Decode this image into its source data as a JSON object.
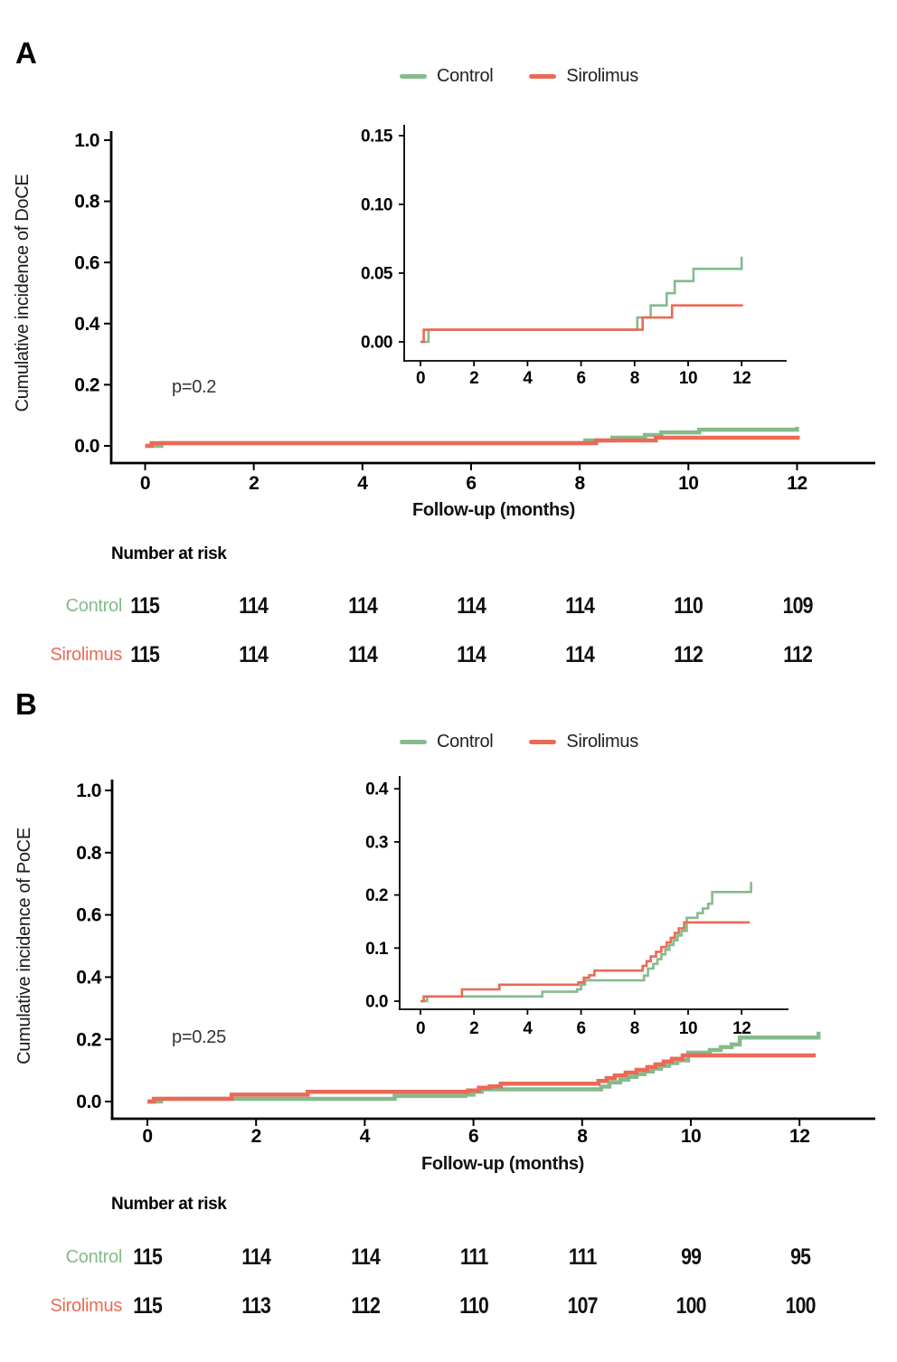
{
  "figure": {
    "panel_a_label": "A",
    "panel_b_label": "B",
    "risk_title": "Number at risk"
  },
  "colors": {
    "control": "#85BB8C",
    "sirolimus": "#EA6A56",
    "axis": "#000000",
    "tick_text": "#000000"
  },
  "legend": {
    "items": [
      {
        "label": "Control",
        "color": "#85BB8C"
      },
      {
        "label": "Sirolimus",
        "color": "#EA6A56"
      }
    ]
  },
  "chart_data": [
    {
      "panel": "A",
      "type": "line",
      "subtype": "step-cumulative-incidence",
      "xlabel": "Follow-up (months)",
      "ylabel": "Cumulative incidence of DoCE",
      "p_value": "p=0.2",
      "main_axis": {
        "xticks": [
          0,
          2,
          4,
          6,
          8,
          10,
          12
        ],
        "ytick_labels": [
          "0.0",
          "0.2",
          "0.4",
          "0.6",
          "0.8",
          "1.0"
        ],
        "xlim": [
          0,
          13.4
        ],
        "ylim": [
          0,
          1.08
        ],
        "grid": false
      },
      "inset_axis": {
        "xticks": [
          0,
          2,
          4,
          6,
          8,
          10,
          12
        ],
        "ytick_labels": [
          "0.00",
          "0.05",
          "0.10",
          "0.15"
        ],
        "xlim": [
          0,
          13.7
        ],
        "ylim": [
          0,
          0.17
        ],
        "grid": false
      },
      "series": [
        {
          "name": "Control",
          "color": "control",
          "points": [
            [
              0,
              0
            ],
            [
              0.3,
              0.0088
            ],
            [
              8.1,
              0.0177
            ],
            [
              8.6,
              0.0265
            ],
            [
              9.2,
              0.0354
            ],
            [
              9.5,
              0.0442
            ],
            [
              10.2,
              0.0531
            ],
            [
              12.0,
              0.062
            ]
          ]
        },
        {
          "name": "Sirolimus",
          "color": "sirolimus",
          "points": [
            [
              0,
              0
            ],
            [
              0.12,
              0.0088
            ],
            [
              8.3,
              0.0177
            ],
            [
              9.4,
              0.0265
            ],
            [
              12.05,
              0.0265
            ]
          ]
        }
      ],
      "risk_table": {
        "title": "Number at risk",
        "time_points": [
          0,
          2,
          4,
          6,
          8,
          10,
          12
        ],
        "rows": [
          {
            "label": "Control",
            "values": [
              "115",
              "114",
              "114",
              "114",
              "114",
              "110",
              "109"
            ]
          },
          {
            "label": "Sirolimus",
            "values": [
              "115",
              "114",
              "114",
              "114",
              "114",
              "112",
              "112"
            ]
          }
        ]
      }
    },
    {
      "panel": "B",
      "type": "line",
      "subtype": "step-cumulative-incidence",
      "xlabel": "Follow-up (months)",
      "ylabel": "Cumulative incidence of PoCE",
      "p_value": "p=0.25",
      "main_axis": {
        "xticks": [
          0,
          2,
          4,
          6,
          8,
          10,
          12
        ],
        "ytick_labels": [
          "0.0",
          "0.2",
          "0.4",
          "0.6",
          "0.8",
          "1.0"
        ],
        "xlim": [
          0,
          13.4
        ],
        "ylim": [
          0,
          1.08
        ],
        "grid": false
      },
      "inset_axis": {
        "xticks": [
          0,
          2,
          4,
          6,
          8,
          10,
          12
        ],
        "ytick_labels": [
          "0.0",
          "0.1",
          "0.2",
          "0.3",
          "0.4"
        ],
        "xlim": [
          0,
          13.7
        ],
        "ylim": [
          0,
          0.44
        ],
        "grid": false
      },
      "series": [
        {
          "name": "Control",
          "color": "control",
          "points": [
            [
              0,
              0
            ],
            [
              0.25,
              0.0088
            ],
            [
              4.55,
              0.0177
            ],
            [
              5.85,
              0.0221
            ],
            [
              6.0,
              0.0311
            ],
            [
              6.15,
              0.0391
            ],
            [
              8.35,
              0.048
            ],
            [
              8.5,
              0.0614
            ],
            [
              8.7,
              0.0702
            ],
            [
              8.85,
              0.0791
            ],
            [
              9.0,
              0.088
            ],
            [
              9.15,
              0.0967
            ],
            [
              9.3,
              0.1058
            ],
            [
              9.45,
              0.1146
            ],
            [
              9.6,
              0.1235
            ],
            [
              9.75,
              0.1323
            ],
            [
              9.95,
              0.157
            ],
            [
              10.35,
              0.1658
            ],
            [
              10.55,
              0.1747
            ],
            [
              10.75,
              0.1835
            ],
            [
              10.9,
              0.2057
            ],
            [
              12.35,
              0.2244
            ]
          ]
        },
        {
          "name": "Sirolimus",
          "color": "sirolimus",
          "points": [
            [
              0,
              0
            ],
            [
              0.12,
              0.0088
            ],
            [
              1.55,
              0.0221
            ],
            [
              2.95,
              0.031
            ],
            [
              5.9,
              0.0354
            ],
            [
              6.1,
              0.0442
            ],
            [
              6.3,
              0.0487
            ],
            [
              6.5,
              0.0576
            ],
            [
              8.3,
              0.0664
            ],
            [
              8.45,
              0.0753
            ],
            [
              8.6,
              0.0841
            ],
            [
              8.8,
              0.093
            ],
            [
              9.0,
              0.1018
            ],
            [
              9.2,
              0.1107
            ],
            [
              9.35,
              0.1195
            ],
            [
              9.5,
              0.1284
            ],
            [
              9.65,
              0.1372
            ],
            [
              9.85,
              0.1484
            ],
            [
              12.3,
              0.1484
            ]
          ]
        }
      ],
      "risk_table": {
        "title": "Number at risk",
        "time_points": [
          0,
          2,
          4,
          6,
          8,
          10,
          12
        ],
        "rows": [
          {
            "label": "Control",
            "values": [
              "115",
              "114",
              "114",
              "111",
              "111",
              "99",
              "95"
            ]
          },
          {
            "label": "Sirolimus",
            "values": [
              "115",
              "113",
              "112",
              "110",
              "107",
              "100",
              "100"
            ]
          }
        ]
      }
    }
  ]
}
